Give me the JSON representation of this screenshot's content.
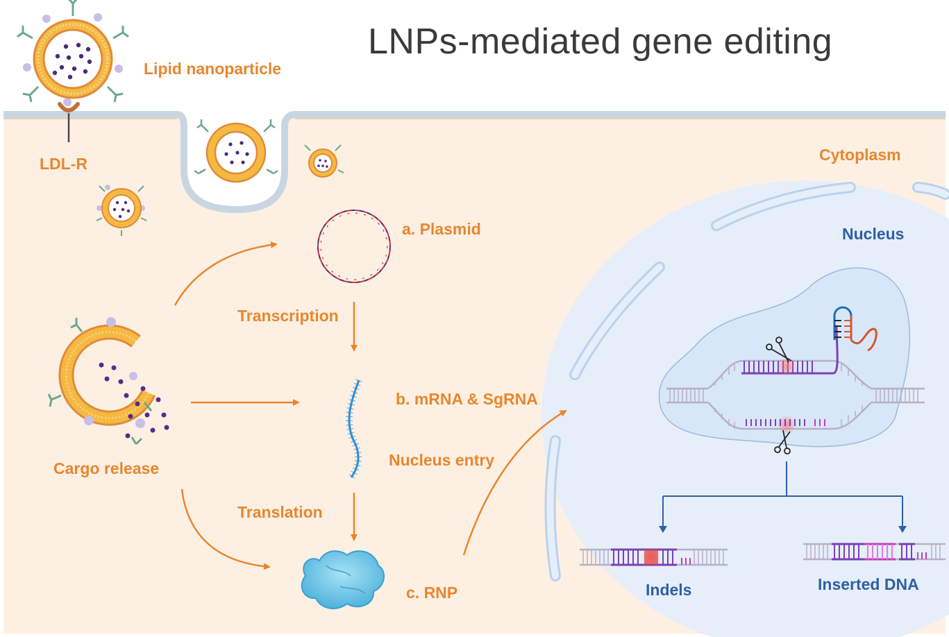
{
  "title": "LNPs-mediated gene editing",
  "labels": {
    "lipid_nanoparticle": "Lipid nanoparticle",
    "ldl_r": "LDL-R",
    "cytoplasm": "Cytoplasm",
    "nucleus": "Nucleus",
    "plasmid": "a. Plasmid",
    "transcription": "Transcription",
    "mrna_sgrna": "b. mRNA & SgRNA",
    "nucleus_entry": "Nucleus entry",
    "cargo_release": "Cargo release",
    "translation": "Translation",
    "rnp": "c. RNP",
    "indels": "Indels",
    "inserted_dna": "Inserted DNA"
  },
  "colors": {
    "cytoplasm_bg": "#fdf0e3",
    "nucleus_bg": "#e6eef9",
    "membrane": "#c9d6e2",
    "arrow_orange": "#e8862e",
    "label_blue": "#2f5fa5",
    "dna_purple": "#7b3fb8",
    "dna_gray": "#b8aec9",
    "cut_red": "#e0433a",
    "sgrna_red": "#d9542c",
    "rnp_blue": "#6ec7e8"
  }
}
